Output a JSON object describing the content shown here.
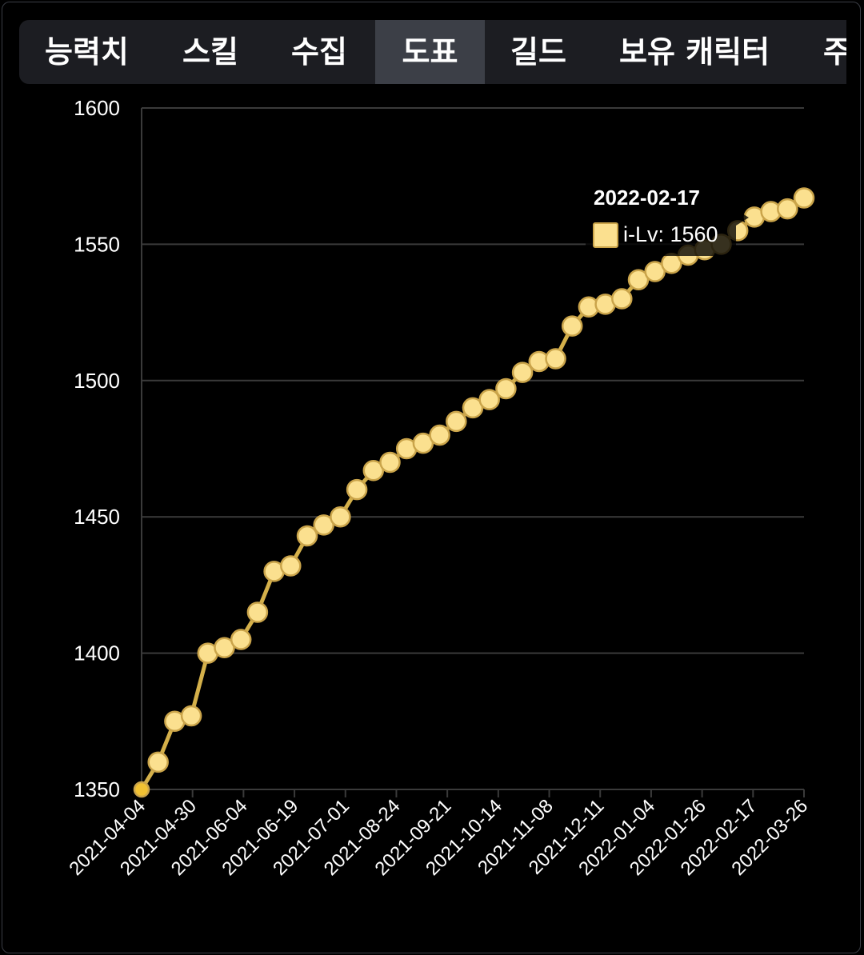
{
  "tabs": [
    {
      "label": "능력치",
      "active": false
    },
    {
      "label": "스킬",
      "active": false
    },
    {
      "label": "수집",
      "active": false
    },
    {
      "label": "도표",
      "active": true
    },
    {
      "label": "길드",
      "active": false
    },
    {
      "label": "보유 캐릭터",
      "active": false
    },
    {
      "label": "주",
      "active": false
    }
  ],
  "colors": {
    "line": "#d4b04a",
    "point_fill": "#fbe08f",
    "point_stroke": "#caa44a",
    "first_point": "#f2c233",
    "grid": "#3a3a3a",
    "tab_active": "#3c3f47"
  },
  "chart_data": {
    "type": "line",
    "ylim": [
      1350,
      1600
    ],
    "yticks": [
      1600,
      1550,
      1500,
      1450,
      1400,
      1350
    ],
    "x_tick_labels": [
      "2021-04-04",
      "2021-04-30",
      "2021-06-04",
      "2021-06-19",
      "2021-07-01",
      "2021-08-24",
      "2021-09-21",
      "2021-10-14",
      "2021-11-08",
      "2021-12-11",
      "2022-01-04",
      "2022-01-26",
      "2022-02-17",
      "2022-03-26"
    ],
    "series": [
      {
        "name": "i-Lv",
        "values": [
          1350,
          1360,
          1375,
          1377,
          1400,
          1402,
          1405,
          1415,
          1430,
          1432,
          1443,
          1447,
          1450,
          1460,
          1467,
          1470,
          1475,
          1477,
          1480,
          1485,
          1490,
          1493,
          1497,
          1503,
          1507,
          1508,
          1520,
          1527,
          1528,
          1530,
          1537,
          1540,
          1543,
          1546,
          1548,
          1550,
          1555,
          1560,
          1562,
          1563,
          1567
        ]
      }
    ],
    "tooltip": {
      "title": "2022-02-17",
      "label": "i-Lv: 1560"
    }
  }
}
